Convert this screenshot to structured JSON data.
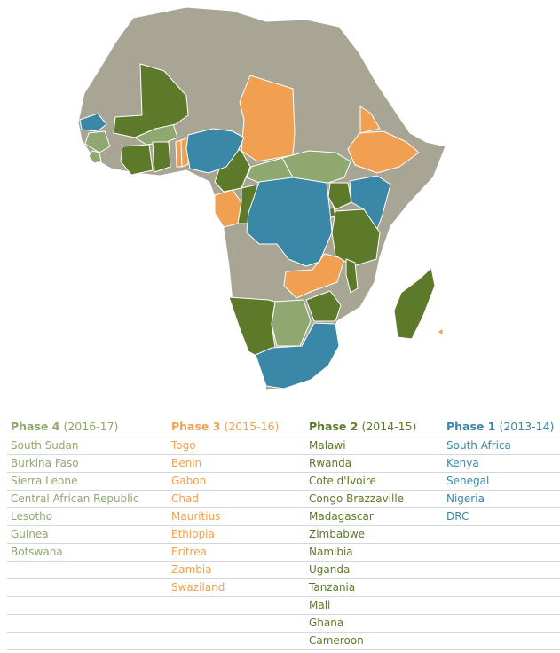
{
  "colors": {
    "phase1": "#3a87a8",
    "phase2": "#5c7a2a",
    "phase3": "#f0a050",
    "phase4": "#8fa870",
    "other": "#a9a594",
    "border": "#ffffff"
  },
  "phases": [
    {
      "key": "phase4",
      "name": "Phase 4",
      "years": "(2016-17)",
      "countries": [
        "South Sudan",
        "Burkina Faso",
        "Sierra Leone",
        "Central African Republic",
        "Lesotho",
        "Guinea",
        "Botswana"
      ]
    },
    {
      "key": "phase3",
      "name": "Phase 3",
      "years": "(2015-16)",
      "countries": [
        "Togo",
        "Benin",
        "Gabon",
        "Chad",
        "Mauritius",
        "Ethiopia",
        "Eritrea",
        "Zambia",
        "Swaziland"
      ]
    },
    {
      "key": "phase2",
      "name": "Phase 2",
      "years": "(2014-15)",
      "countries": [
        "Malawi",
        "Rwanda",
        "Cote d'Ivoire",
        "Congo Brazzaville",
        "Madagascar",
        "Zimbabwe",
        "Namibia",
        "Uganda",
        "Tanzania",
        "Mali",
        "Ghana",
        "Cameroon"
      ]
    },
    {
      "key": "phase1",
      "name": "Phase 1",
      "years": "(2013-14)",
      "countries": [
        "South Africa",
        "Kenya",
        "Senegal",
        "Nigeria",
        "DRC"
      ]
    }
  ]
}
